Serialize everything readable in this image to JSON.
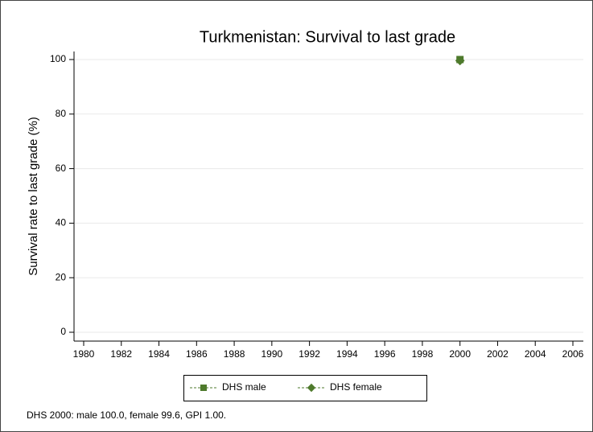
{
  "chart_data": {
    "type": "scatter",
    "title": "Turkmenistan: Survival to last grade",
    "y_label": "Survival rate to last grade (%)",
    "x": [
      2000
    ],
    "series": [
      {
        "name": "DHS male",
        "color": "#4e7a2c",
        "marker": "square",
        "values": [
          100
        ]
      },
      {
        "name": "DHS female",
        "color": "#4e7a2c",
        "marker": "diamond",
        "values": [
          99.6
        ]
      }
    ],
    "xlim": [
      1980,
      2006
    ],
    "xticks": [
      1980,
      1982,
      1984,
      1986,
      1988,
      1990,
      1992,
      1994,
      1996,
      1998,
      2000,
      2002,
      2004,
      2006
    ],
    "ylim": [
      0,
      100
    ],
    "yticks": [
      0,
      20,
      40,
      60,
      80,
      100
    ],
    "grid": true,
    "legend": "bottom",
    "note": "DHS 2000: male 100.0, female 99.6, GPI 1.00."
  }
}
